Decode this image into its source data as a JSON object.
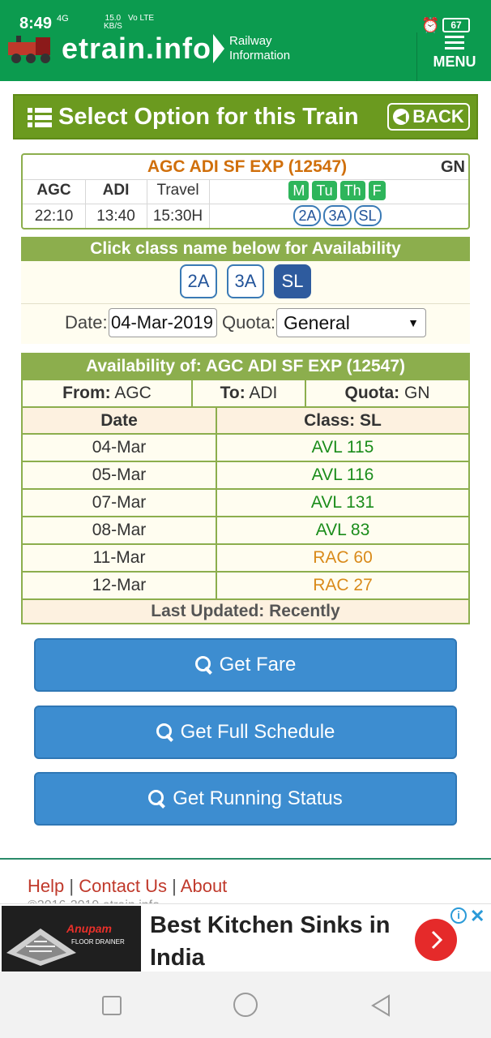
{
  "status_bar": {
    "time": "8:49",
    "signal": "4G",
    "speed_value": "15.0",
    "speed_unit": "KB/S",
    "volte": "Vo LTE",
    "battery": "67"
  },
  "header": {
    "logo_text": "etrain.info",
    "logo_sub_1": "Railway",
    "logo_sub_2": "Information",
    "menu_label": "MENU"
  },
  "banner": {
    "title": "Select Option for this Train",
    "back_label": "BACK"
  },
  "train": {
    "name": "AGC ADI SF EXP (12547)",
    "quota_code": "GN",
    "from_code": "AGC",
    "to_code": "ADI",
    "travel_label": "Travel",
    "departure": "22:10",
    "arrival": "13:40",
    "travel_time": "15:30H",
    "days": [
      "M",
      "Tu",
      "Th",
      "F"
    ],
    "classes": [
      "2A",
      "3A",
      "SL"
    ]
  },
  "class_section": {
    "heading": "Click class name below for Availability",
    "buttons": [
      "2A",
      "3A",
      "SL"
    ],
    "selected": "SL",
    "date_label": "Date:",
    "date_value": "04-Mar-2019",
    "quota_label": "Quota:",
    "quota_value": "General"
  },
  "availability": {
    "heading": "Availability of: AGC ADI SF EXP (12547)",
    "from_label": "From:",
    "from_value": "AGC",
    "to_label": "To:",
    "to_value": "ADI",
    "quota_label": "Quota:",
    "quota_value": "GN",
    "col_date": "Date",
    "col_class": "Class: SL",
    "rows": [
      {
        "date": "04-Mar",
        "status": "AVL 115",
        "color": "#1a8c1a"
      },
      {
        "date": "05-Mar",
        "status": "AVL 116",
        "color": "#1a8c1a"
      },
      {
        "date": "07-Mar",
        "status": "AVL 131",
        "color": "#1a8c1a"
      },
      {
        "date": "08-Mar",
        "status": "AVL 83",
        "color": "#1a8c1a"
      },
      {
        "date": "11-Mar",
        "status": "RAC 60",
        "color": "#d98a1a"
      },
      {
        "date": "12-Mar",
        "status": "RAC 27",
        "color": "#d98a1a"
      }
    ],
    "last_updated": "Last Updated: Recently"
  },
  "actions": {
    "fare": "Get Fare",
    "schedule": "Get Full Schedule",
    "running_status": "Get Running Status"
  },
  "footer": {
    "help": "Help",
    "contact": "Contact Us",
    "about": "About",
    "separator": "|",
    "copyright": "©2016-2019 etrain.info"
  },
  "ad": {
    "brand": "Anupam",
    "brand_sub": "FLOOR DRAINER",
    "title": "Best Kitchen Sinks in India"
  }
}
